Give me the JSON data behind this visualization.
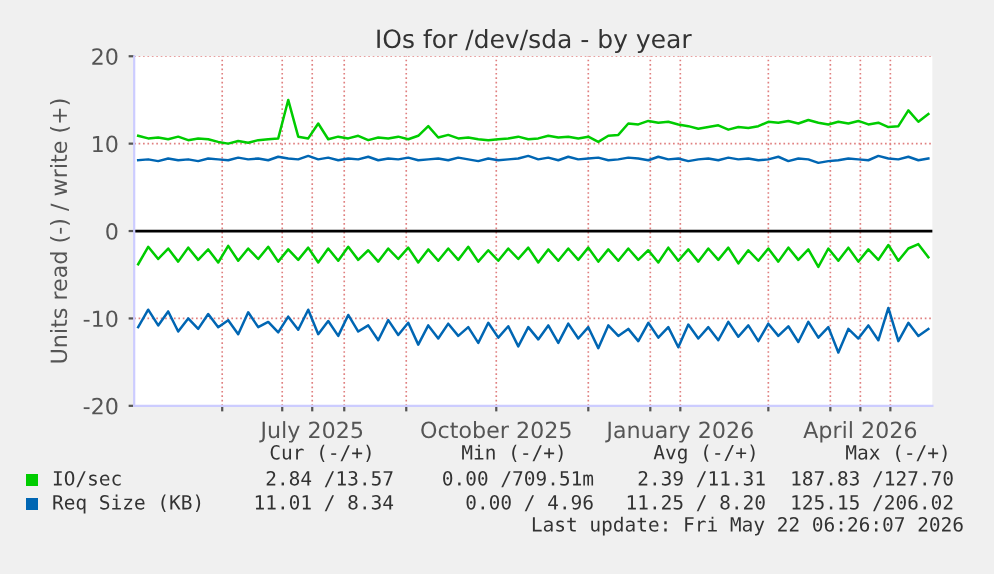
{
  "chart_data": {
    "type": "line",
    "title": "IOs for /dev/sda - by year",
    "ylabel": "Units read (-) / write (+)",
    "x": [
      "2025-04-20",
      "2025-04-25",
      "2025-04-30",
      "2025-05-05",
      "2025-05-10",
      "2025-05-15",
      "2025-05-20",
      "2025-05-25",
      "2025-05-30",
      "2025-06-04",
      "2025-06-09",
      "2025-06-14",
      "2025-06-19",
      "2025-06-24",
      "2025-06-29",
      "2025-07-04",
      "2025-07-09",
      "2025-07-14",
      "2025-07-19",
      "2025-07-24",
      "2025-07-29",
      "2025-08-03",
      "2025-08-08",
      "2025-08-13",
      "2025-08-18",
      "2025-08-23",
      "2025-08-28",
      "2025-09-02",
      "2025-09-07",
      "2025-09-12",
      "2025-09-17",
      "2025-09-22",
      "2025-09-27",
      "2025-10-02",
      "2025-10-07",
      "2025-10-12",
      "2025-10-17",
      "2025-10-22",
      "2025-10-27",
      "2025-11-01",
      "2025-11-06",
      "2025-11-11",
      "2025-11-16",
      "2025-11-21",
      "2025-11-26",
      "2025-12-01",
      "2025-12-06",
      "2025-12-11",
      "2025-12-16",
      "2025-12-21",
      "2025-12-26",
      "2025-12-31",
      "2026-01-05",
      "2026-01-10",
      "2026-01-15",
      "2026-01-20",
      "2026-01-25",
      "2026-01-30",
      "2026-02-04",
      "2026-02-09",
      "2026-02-14",
      "2026-02-19",
      "2026-02-24",
      "2026-03-01",
      "2026-03-06",
      "2026-03-11",
      "2026-03-16",
      "2026-03-21",
      "2026-03-26",
      "2026-03-31",
      "2026-04-05",
      "2026-04-10",
      "2026-04-15",
      "2026-04-20",
      "2026-04-25",
      "2026-04-30",
      "2026-05-05",
      "2026-05-10",
      "2026-05-15",
      "2026-05-20"
    ],
    "series": [
      {
        "name": "IO/sec",
        "color": "#00cc00",
        "values": [
          10.9,
          10.6,
          10.7,
          10.5,
          10.8,
          10.4,
          10.6,
          10.5,
          10.2,
          10.0,
          10.3,
          10.1,
          10.4,
          10.5,
          10.6,
          15.0,
          10.8,
          10.6,
          12.3,
          10.5,
          10.8,
          10.6,
          10.9,
          10.4,
          10.7,
          10.6,
          10.8,
          10.5,
          10.9,
          12.0,
          10.7,
          11.0,
          10.6,
          10.7,
          10.5,
          10.4,
          10.5,
          10.6,
          10.8,
          10.5,
          10.6,
          10.9,
          10.7,
          10.8,
          10.6,
          10.8,
          10.2,
          10.9,
          11.0,
          12.3,
          12.2,
          12.6,
          12.4,
          12.5,
          12.2,
          12.0,
          11.7,
          11.9,
          12.1,
          11.6,
          11.9,
          11.8,
          12.0,
          12.5,
          12.4,
          12.6,
          12.3,
          12.7,
          12.4,
          12.2,
          12.5,
          12.3,
          12.6,
          12.2,
          12.4,
          11.9,
          12.0,
          13.8,
          12.5,
          13.4
        ]
      },
      {
        "color": "#00cc00",
        "values": [
          -3.8,
          -1.8,
          -3.2,
          -2.0,
          -3.5,
          -1.9,
          -3.3,
          -2.1,
          -3.6,
          -1.7,
          -3.4,
          -2.0,
          -3.2,
          -1.8,
          -3.5,
          -2.1,
          -3.3,
          -1.9,
          -3.6,
          -2.0,
          -3.4,
          -1.8,
          -3.3,
          -2.2,
          -3.5,
          -2.0,
          -3.2,
          -1.9,
          -3.6,
          -2.1,
          -3.4,
          -2.0,
          -3.3,
          -1.8,
          -3.5,
          -2.2,
          -3.4,
          -2.0,
          -3.2,
          -1.9,
          -3.6,
          -2.1,
          -3.4,
          -2.0,
          -3.3,
          -1.9,
          -3.5,
          -2.1,
          -3.4,
          -2.0,
          -3.3,
          -2.2,
          -3.6,
          -1.9,
          -3.4,
          -2.1,
          -3.5,
          -2.0,
          -3.3,
          -1.9,
          -3.7,
          -2.2,
          -3.4,
          -2.0,
          -3.5,
          -1.9,
          -3.3,
          -2.1,
          -4.1,
          -2.0,
          -3.4,
          -1.9,
          -3.5,
          -2.1,
          -3.3,
          -1.6,
          -3.4,
          -2.0,
          -1.5,
          -3.0
        ]
      },
      {
        "name": "Req Size (KB)",
        "color": "#0066b3",
        "values": [
          8.1,
          8.2,
          8.0,
          8.3,
          8.1,
          8.2,
          8.0,
          8.3,
          8.2,
          8.1,
          8.4,
          8.2,
          8.3,
          8.1,
          8.5,
          8.3,
          8.2,
          8.6,
          8.2,
          8.4,
          8.1,
          8.3,
          8.2,
          8.5,
          8.1,
          8.3,
          8.2,
          8.4,
          8.1,
          8.2,
          8.3,
          8.1,
          8.4,
          8.2,
          8.0,
          8.3,
          8.1,
          8.2,
          8.3,
          8.6,
          8.2,
          8.4,
          8.1,
          8.5,
          8.2,
          8.3,
          8.4,
          8.1,
          8.2,
          8.4,
          8.3,
          8.1,
          8.5,
          8.2,
          8.3,
          8.0,
          8.2,
          8.3,
          8.1,
          8.4,
          8.2,
          8.3,
          8.1,
          8.2,
          8.5,
          8.0,
          8.3,
          8.2,
          7.8,
          8.0,
          8.1,
          8.3,
          8.2,
          8.1,
          8.6,
          8.3,
          8.2,
          8.5,
          8.1,
          8.3
        ]
      },
      {
        "color": "#0066b3",
        "values": [
          -11.0,
          -9.0,
          -10.8,
          -9.2,
          -11.5,
          -10.0,
          -11.2,
          -9.5,
          -11.0,
          -10.2,
          -11.8,
          -9.3,
          -11.0,
          -10.4,
          -11.6,
          -9.8,
          -11.3,
          -9.0,
          -11.8,
          -10.3,
          -12.0,
          -9.6,
          -11.5,
          -10.8,
          -12.5,
          -10.2,
          -11.9,
          -10.5,
          -13.0,
          -10.8,
          -12.3,
          -10.6,
          -12.0,
          -11.0,
          -12.8,
          -10.5,
          -12.2,
          -10.9,
          -13.2,
          -11.0,
          -12.4,
          -10.8,
          -12.8,
          -10.6,
          -12.3,
          -11.0,
          -13.4,
          -10.8,
          -12.0,
          -11.2,
          -12.6,
          -10.5,
          -12.2,
          -11.0,
          -13.3,
          -10.7,
          -12.3,
          -11.0,
          -12.5,
          -10.4,
          -12.1,
          -10.8,
          -12.6,
          -10.6,
          -12.0,
          -10.9,
          -12.7,
          -10.4,
          -12.2,
          -11.0,
          -13.9,
          -11.2,
          -12.3,
          -10.8,
          -12.5,
          -8.8,
          -12.6,
          -10.5,
          -12.0,
          -11.2
        ]
      }
    ],
    "xlim": [
      "2025-04-18",
      "2026-05-22"
    ],
    "xticks": [
      {
        "value": "2025-06-01",
        "label": null
      },
      {
        "value": "2025-07-01",
        "label": null
      },
      {
        "value": "2025-08-01",
        "label": null
      },
      {
        "value": "2025-09-01",
        "label": null
      },
      {
        "value": "2025-12-01",
        "label": null
      },
      {
        "value": "2026-01-01",
        "label": null
      },
      {
        "value": "2026-03-01",
        "label": null
      },
      {
        "value": "2026-04-01",
        "label": null
      },
      {
        "value": "2026-05-01",
        "label": null
      },
      {
        "value": "2025-07-16",
        "label": "July 2025"
      },
      {
        "value": "2025-10-16",
        "label": "October 2025"
      },
      {
        "value": "2026-01-16",
        "label": "January 2026"
      },
      {
        "value": "2026-04-16",
        "label": "April 2026"
      }
    ],
    "ylim": [
      -20,
      20
    ],
    "yticks": [
      -20,
      -10,
      0,
      10,
      20
    ],
    "ref_lines": [
      {
        "axis": "y",
        "value": 0,
        "color": "#000000"
      }
    ],
    "grid": true,
    "legend": "bottom",
    "annotations": [
      "Cur (-/+)",
      "Min (-/+)",
      "Avg (-/+)",
      "Max (-/+)",
      "2.84 /13.57",
      "0.00 /709.51m",
      "2.39 /11.31",
      "187.83 /127.70",
      "11.01 / 8.34",
      "0.00 / 4.96",
      "11.25 / 8.20",
      "125.15 /206.02",
      "Last update: Fri May 22 06:26:07 2026"
    ]
  }
}
